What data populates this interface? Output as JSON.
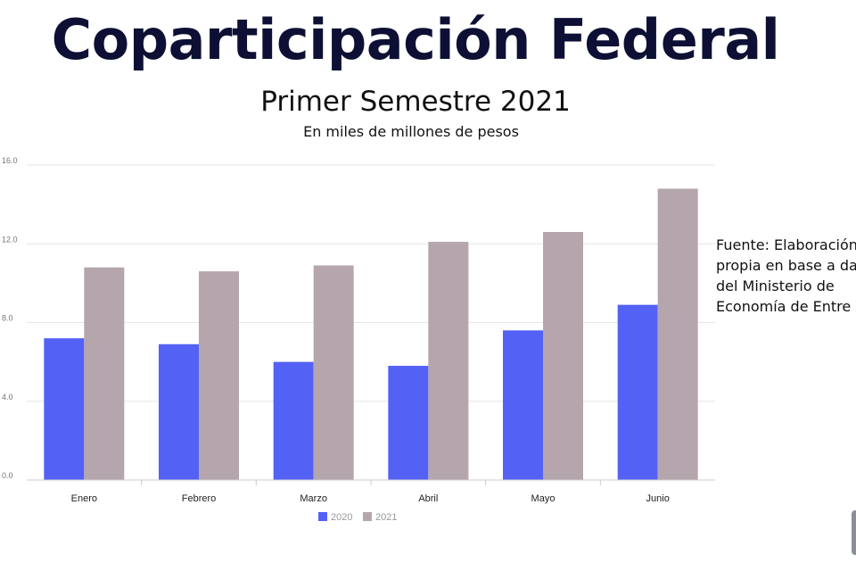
{
  "header": {
    "title": "Coparticipación Federal",
    "subtitle": "Primer Semestre 2021",
    "unit_note": "En miles de millones de pesos"
  },
  "source_note": {
    "lines": [
      "Fuente: Elaboración",
      "propia en base a dat",
      "del Ministerio de",
      "Economía de Entre R"
    ]
  },
  "chart_data": {
    "type": "bar",
    "title": "",
    "xlabel": "",
    "ylabel": "",
    "categories": [
      "Enero",
      "Febrero",
      "Marzo",
      "Abril",
      "Mayo",
      "Junio"
    ],
    "series": [
      {
        "name": "2020",
        "color": "#5361f5",
        "values": [
          7.2,
          6.9,
          6.0,
          5.8,
          7.6,
          8.9
        ]
      },
      {
        "name": "2021",
        "color": "#b5a6ad",
        "values": [
          10.8,
          10.6,
          10.9,
          12.1,
          12.6,
          14.8
        ]
      }
    ],
    "ylim": [
      0,
      16
    ],
    "yticks": [
      "0.0",
      "4.0",
      "8.0",
      "12.0",
      "16.0"
    ],
    "grid": true,
    "legend": "bottom"
  }
}
